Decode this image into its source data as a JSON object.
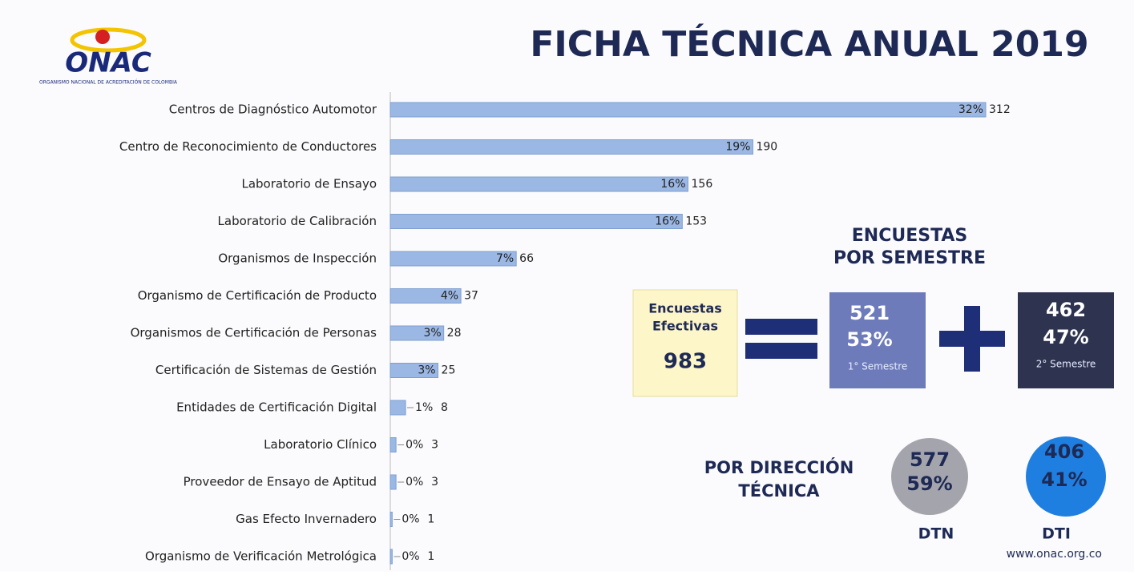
{
  "chart_data": {
    "type": "bar",
    "orientation": "horizontal",
    "title": "FICHA TÉCNICA ANUAL 2019",
    "categories": [
      "Centros de Diagnóstico Automotor",
      "Centro de Reconocimiento de Conductores",
      "Laboratorio de Ensayo",
      "Laboratorio de Calibración",
      "Organismos de Inspección",
      "Organismo de Certificación de Producto",
      "Organismos de Certificación de Personas",
      "Certificación de Sistemas de Gestión",
      "Entidades de Certificación Digital",
      "Laboratorio Clínico",
      "Proveedor de Ensayo de Aptitud",
      "Gas Efecto Invernadero",
      "Organismo de Verificación Metrológica"
    ],
    "values": [
      312,
      190,
      156,
      153,
      66,
      37,
      28,
      25,
      8,
      3,
      3,
      1,
      1
    ],
    "percent_labels": [
      "32%",
      "19%",
      "16%",
      "16%",
      "7%",
      "4%",
      "3%",
      "3%",
      "1%",
      "0%",
      "0%",
      "0%",
      "0%"
    ],
    "color": "#9bb8e4",
    "xlim": [
      0,
      312
    ]
  },
  "logo": {
    "name": "ONAC",
    "subtitle": "ORGANISMO NACIONAL DE ACREDITACIÓN DE COLOMBIA"
  },
  "survey": {
    "title_line1": "ENCUESTAS",
    "title_line2": "POR SEMESTRE",
    "total_label_line1": "Encuestas",
    "total_label_line2": "Efectivas",
    "total": 983,
    "semesters": [
      {
        "count": 521,
        "percent": "53%",
        "label": "1° Semestre"
      },
      {
        "count": 462,
        "percent": "47%",
        "label": "2° Semestre"
      }
    ]
  },
  "direction": {
    "title_line1": "POR DIRECCIÓN",
    "title_line2": "TÉCNICA",
    "items": [
      {
        "count": 577,
        "percent": "59%",
        "label": "DTN"
      },
      {
        "count": 406,
        "percent": "41%",
        "label": "DTI"
      }
    ]
  },
  "footer": {
    "url": "www.onac.org.co"
  }
}
